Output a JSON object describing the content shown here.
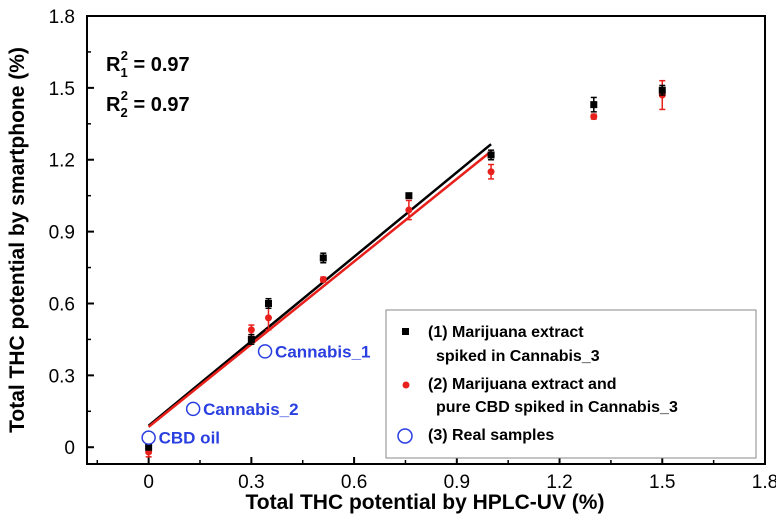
{
  "chart_data": {
    "type": "scatter",
    "xlabel": "Total THC potential by HPLC-UV (%)",
    "ylabel": "Total THC potential by smartphone (%)",
    "xlim": [
      -0.18,
      1.8
    ],
    "ylim": [
      -0.07,
      1.8
    ],
    "x_ticks": [
      "0",
      "0.3",
      "0.6",
      "0.9",
      "1.2",
      "1.5",
      "1.8"
    ],
    "x_tick_values": [
      0,
      0.3,
      0.6,
      0.9,
      1.2,
      1.5,
      1.8
    ],
    "y_ticks": [
      "0",
      "0.3",
      "0.6",
      "0.9",
      "1.2",
      "1.5",
      "1.8"
    ],
    "y_tick_values": [
      0,
      0.3,
      0.6,
      0.9,
      1.2,
      1.5,
      1.8
    ],
    "annotations": {
      "r1": {
        "prefix": "R",
        "sub": "1",
        "sup": "2",
        "value": " = 0.97"
      },
      "r2": {
        "prefix": "R",
        "sub": "2",
        "sup": "2",
        "value": " = 0.97"
      }
    },
    "series": [
      {
        "name": "(1) Marijuana extract spiked in Cannabis_3",
        "color": "#000000",
        "marker": "square",
        "x": [
          0,
          0.3,
          0.35,
          0.51,
          0.76,
          1.0,
          1.3,
          1.5
        ],
        "y": [
          0.0,
          0.45,
          0.6,
          0.79,
          1.05,
          1.22,
          1.43,
          1.49
        ],
        "err": [
          0.01,
          0.02,
          0.02,
          0.02,
          0.01,
          0.02,
          0.03,
          0.02
        ]
      },
      {
        "name": "(2) Marijuana extract and pure CBD spiked in Cannabis_3",
        "color": "#e8201c",
        "marker": "circle",
        "x": [
          0,
          0.3,
          0.35,
          0.51,
          0.76,
          1.0,
          1.3,
          1.5
        ],
        "y": [
          -0.02,
          0.49,
          0.54,
          0.7,
          0.99,
          1.15,
          1.38,
          1.47
        ],
        "err": [
          0.02,
          0.02,
          0.05,
          0.01,
          0.04,
          0.03,
          0.01,
          0.06
        ]
      },
      {
        "name": "(3) Real samples",
        "color": "#2a3fe0",
        "marker": "open-circle",
        "x": [
          0,
          0.13,
          0.34
        ],
        "y": [
          0.04,
          0.16,
          0.4
        ],
        "labels": [
          "CBD oil",
          "Cannabis_2",
          "Cannabis_1"
        ]
      }
    ],
    "fits": [
      {
        "name": "fit-1",
        "color": "#000000",
        "x": [
          0,
          1.0
        ],
        "y": [
          0.09,
          1.265
        ]
      },
      {
        "name": "fit-2",
        "color": "#e8201c",
        "x": [
          0,
          1.0
        ],
        "y": [
          0.085,
          1.235
        ]
      }
    ],
    "legend": {
      "position": "bottom-right",
      "entries": [
        {
          "lines": [
            "(1) Marijuana extract",
            "spiked in Cannabis_3"
          ]
        },
        {
          "lines": [
            "(2)  Marijuana extract and",
            "pure CBD spiked in Cannabis_3"
          ]
        },
        {
          "lines": [
            "(3) Real samples"
          ]
        }
      ]
    }
  }
}
